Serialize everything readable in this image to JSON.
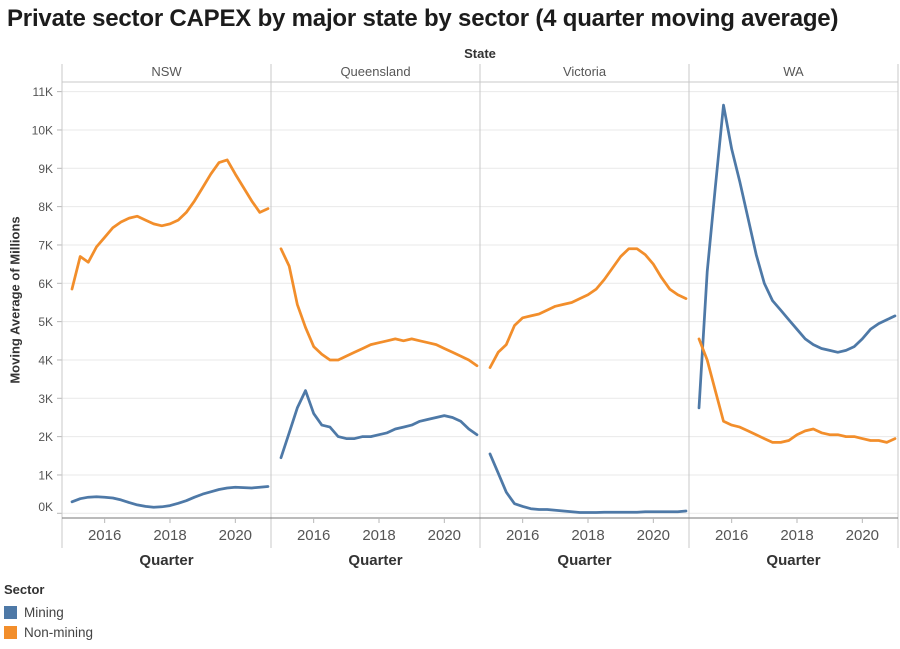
{
  "title": "Private sector CAPEX by major state by sector (4 quarter moving average)",
  "column_field_label": "State",
  "y_axis": {
    "title": "Moving Average of Millions",
    "ticks": [
      "0K",
      "1K",
      "2K",
      "3K",
      "4K",
      "5K",
      "6K",
      "7K",
      "8K",
      "9K",
      "10K",
      "11K"
    ],
    "min": 0,
    "max": 11
  },
  "x_axis": {
    "title": "Quarter",
    "ticks": [
      "2016",
      "2018",
      "2020"
    ]
  },
  "legend": {
    "title": "Sector",
    "items": [
      {
        "label": "Mining",
        "color": "#4e79a7"
      },
      {
        "label": "Non-mining",
        "color": "#f28e2b"
      }
    ]
  },
  "colors": {
    "mining": "#4e79a7",
    "non_mining": "#f28e2b",
    "gridline": "#e9e9e9",
    "panel_border": "#c9c9c9",
    "axis_line": "#777777",
    "tick_mark": "#b7b7b7",
    "tick_text": "#555555"
  },
  "chart_data": {
    "type": "line",
    "title": "Private sector CAPEX by major state by sector (4 quarter moving average)",
    "xlabel": "Quarter",
    "ylabel": "Moving Average of Millions",
    "ylim": [
      0,
      11
    ],
    "y_unit": "K (millions of dollars)",
    "grid": true,
    "legend_position": "bottom-left",
    "x": [
      "2015 Q1",
      "2015 Q2",
      "2015 Q3",
      "2015 Q4",
      "2016 Q1",
      "2016 Q2",
      "2016 Q3",
      "2016 Q4",
      "2017 Q1",
      "2017 Q2",
      "2017 Q3",
      "2017 Q4",
      "2018 Q1",
      "2018 Q2",
      "2018 Q3",
      "2018 Q4",
      "2019 Q1",
      "2019 Q2",
      "2019 Q3",
      "2019 Q4",
      "2020 Q1",
      "2020 Q2",
      "2020 Q3",
      "2020 Q4",
      "2021 Q1"
    ],
    "x_ticks_shown": [
      "2016",
      "2018",
      "2020"
    ],
    "panels": [
      {
        "state": "NSW",
        "series": [
          {
            "name": "Mining",
            "color": "#4e79a7",
            "values": [
              0.3,
              0.38,
              0.42,
              0.43,
              0.42,
              0.4,
              0.35,
              0.28,
              0.22,
              0.18,
              0.16,
              0.17,
              0.2,
              0.26,
              0.33,
              0.42,
              0.5,
              0.56,
              0.62,
              0.66,
              0.68,
              0.67,
              0.66,
              0.68,
              0.7
            ]
          },
          {
            "name": "Non-mining",
            "color": "#f28e2b",
            "values": [
              5.85,
              6.7,
              6.55,
              6.95,
              7.2,
              7.45,
              7.6,
              7.7,
              7.75,
              7.65,
              7.55,
              7.5,
              7.55,
              7.65,
              7.85,
              8.15,
              8.5,
              8.85,
              9.15,
              9.22,
              8.85,
              8.5,
              8.15,
              7.85,
              7.95
            ]
          }
        ]
      },
      {
        "state": "Queensland",
        "series": [
          {
            "name": "Mining",
            "color": "#4e79a7",
            "values": [
              1.45,
              2.1,
              2.75,
              3.2,
              2.6,
              2.3,
              2.25,
              2.0,
              1.95,
              1.95,
              2.0,
              2.0,
              2.05,
              2.1,
              2.2,
              2.25,
              2.3,
              2.4,
              2.45,
              2.5,
              2.55,
              2.5,
              2.4,
              2.2,
              2.05
            ]
          },
          {
            "name": "Non-mining",
            "color": "#f28e2b",
            "values": [
              6.9,
              6.45,
              5.45,
              4.85,
              4.35,
              4.15,
              4.0,
              4.0,
              4.1,
              4.2,
              4.3,
              4.4,
              4.45,
              4.5,
              4.55,
              4.5,
              4.55,
              4.5,
              4.45,
              4.4,
              4.3,
              4.2,
              4.1,
              4.0,
              3.85
            ]
          }
        ]
      },
      {
        "state": "Victoria",
        "series": [
          {
            "name": "Mining",
            "color": "#4e79a7",
            "values": [
              1.55,
              1.05,
              0.55,
              0.25,
              0.18,
              0.12,
              0.1,
              0.1,
              0.08,
              0.06,
              0.04,
              0.02,
              0.02,
              0.02,
              0.03,
              0.03,
              0.03,
              0.03,
              0.03,
              0.04,
              0.04,
              0.04,
              0.04,
              0.04,
              0.06
            ]
          },
          {
            "name": "Non-mining",
            "color": "#f28e2b",
            "values": [
              3.8,
              4.2,
              4.4,
              4.9,
              5.1,
              5.15,
              5.2,
              5.3,
              5.4,
              5.45,
              5.5,
              5.6,
              5.7,
              5.85,
              6.1,
              6.4,
              6.7,
              6.9,
              6.9,
              6.75,
              6.5,
              6.15,
              5.85,
              5.7,
              5.6
            ]
          }
        ]
      },
      {
        "state": "WA",
        "series": [
          {
            "name": "Mining",
            "color": "#4e79a7",
            "values": [
              2.75,
              6.3,
              8.5,
              10.65,
              9.5,
              8.65,
              7.7,
              6.75,
              6.0,
              5.55,
              5.3,
              5.05,
              4.8,
              4.55,
              4.4,
              4.3,
              4.25,
              4.2,
              4.25,
              4.35,
              4.55,
              4.8,
              4.95,
              5.05,
              5.15
            ]
          },
          {
            "name": "Non-mining",
            "color": "#f28e2b",
            "values": [
              4.55,
              4.0,
              3.2,
              2.4,
              2.3,
              2.25,
              2.15,
              2.05,
              1.95,
              1.85,
              1.85,
              1.9,
              2.05,
              2.15,
              2.2,
              2.1,
              2.05,
              2.05,
              2.0,
              2.0,
              1.95,
              1.9,
              1.9,
              1.85,
              1.95
            ]
          }
        ]
      }
    ]
  }
}
